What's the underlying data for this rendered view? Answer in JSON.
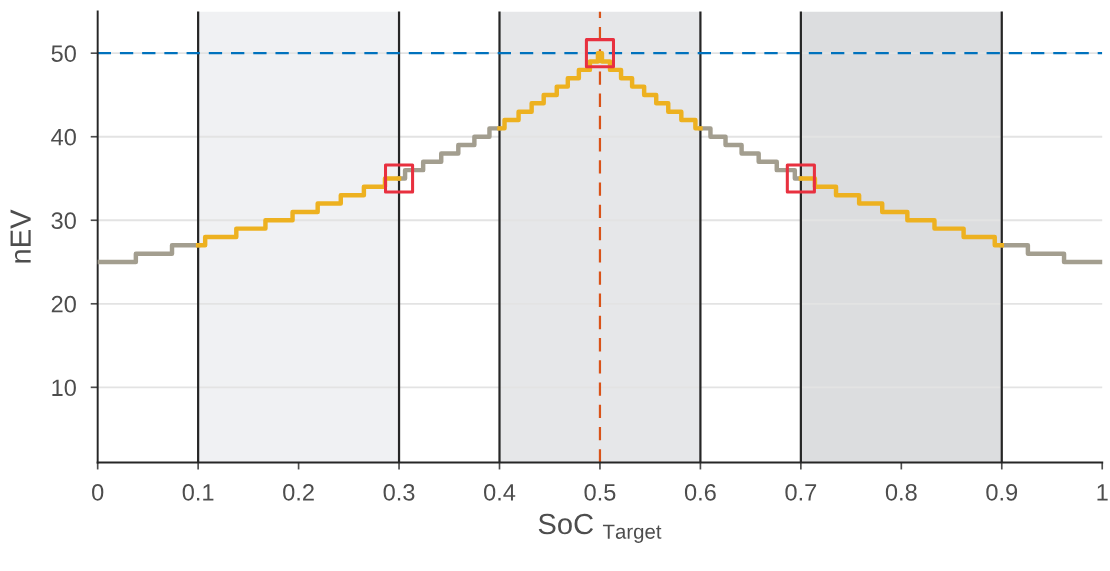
{
  "chart_data": {
    "type": "step",
    "xlabel": "SoC $_{Target}$",
    "ylabel": "nEV",
    "xlim": [
      0,
      1
    ],
    "ylim": [
      1,
      55
    ],
    "xticks": [
      0,
      0.1,
      0.2,
      0.3,
      0.4,
      0.5,
      0.6,
      0.7,
      0.8,
      0.9,
      1
    ],
    "yticks": [
      10,
      20,
      30,
      40,
      50
    ],
    "grid": "y",
    "legend": false,
    "line_style": "solid",
    "marker": "none",
    "bands": [
      {
        "axis": "x",
        "from": 0.1,
        "to": 0.3,
        "color": "#f0f1f3"
      },
      {
        "axis": "x",
        "from": 0.4,
        "to": 0.6,
        "color": "#e6e7e9"
      },
      {
        "axis": "x",
        "from": 0.7,
        "to": 0.9,
        "color": "#dcdddf"
      }
    ],
    "ref_lines": [
      {
        "axis": "x",
        "value": 0.1,
        "color": "#262626",
        "line_style": "solid"
      },
      {
        "axis": "x",
        "value": 0.3,
        "color": "#262626",
        "line_style": "solid"
      },
      {
        "axis": "x",
        "value": 0.4,
        "color": "#262626",
        "line_style": "solid"
      },
      {
        "axis": "x",
        "value": 0.6,
        "color": "#262626",
        "line_style": "solid"
      },
      {
        "axis": "x",
        "value": 0.7,
        "color": "#262626",
        "line_style": "solid"
      },
      {
        "axis": "x",
        "value": 0.9,
        "color": "#262626",
        "line_style": "solid"
      },
      {
        "axis": "y",
        "value": 50,
        "color": "#0072bd",
        "line_style": "dashed"
      },
      {
        "axis": "x",
        "value": 0.5,
        "color": "#d95319",
        "line_style": "dashed"
      }
    ],
    "series": [
      {
        "color": "#a39e8f",
        "x": [
          0,
          0.038,
          0.074,
          0.1
        ],
        "values": [
          25,
          26,
          27,
          27
        ]
      },
      {
        "color": "#a39e8f",
        "x": [
          0.3,
          0.306,
          0.324,
          0.342,
          0.359,
          0.375,
          0.39,
          0.4
        ],
        "values": [
          35,
          36,
          37,
          38,
          39,
          40,
          41,
          41
        ]
      },
      {
        "color": "#a39e8f",
        "x": [
          0.6,
          0.61,
          0.625,
          0.641,
          0.658,
          0.676,
          0.694,
          0.7
        ],
        "values": [
          41,
          40,
          39,
          38,
          37,
          36,
          35,
          35
        ]
      },
      {
        "color": "#a39e8f",
        "x": [
          0.9,
          0.926,
          0.962,
          1
        ],
        "values": [
          27,
          26,
          25,
          25
        ]
      },
      {
        "color": "#edb120",
        "x": [
          0.1,
          0.107,
          0.138,
          0.167,
          0.194,
          0.219,
          0.242,
          0.265,
          0.286,
          0.3
        ],
        "values": [
          27,
          28,
          29,
          30,
          31,
          32,
          33,
          34,
          35,
          35
        ]
      },
      {
        "color": "#edb120",
        "x": [
          0.4,
          0.405,
          0.419,
          0.432,
          0.444,
          0.457,
          0.468,
          0.479,
          0.49,
          0.498,
          0.502,
          0.51,
          0.521,
          0.532,
          0.544,
          0.556,
          0.568,
          0.581,
          0.595,
          0.6
        ],
        "values": [
          41,
          42,
          43,
          44,
          45,
          46,
          47,
          48,
          49,
          50,
          49,
          48,
          47,
          46,
          45,
          44,
          43,
          42,
          41,
          41
        ]
      },
      {
        "color": "#edb120",
        "x": [
          0.7,
          0.714,
          0.735,
          0.758,
          0.781,
          0.806,
          0.833,
          0.862,
          0.893,
          0.9
        ],
        "values": [
          35,
          34,
          33,
          32,
          31,
          30,
          29,
          28,
          27,
          27
        ]
      },
      {
        "type": "scatter",
        "marker": "square",
        "color": "#e8303f",
        "x": [
          0.3,
          0.5,
          0.7
        ],
        "values": [
          35,
          50,
          35
        ]
      }
    ]
  }
}
